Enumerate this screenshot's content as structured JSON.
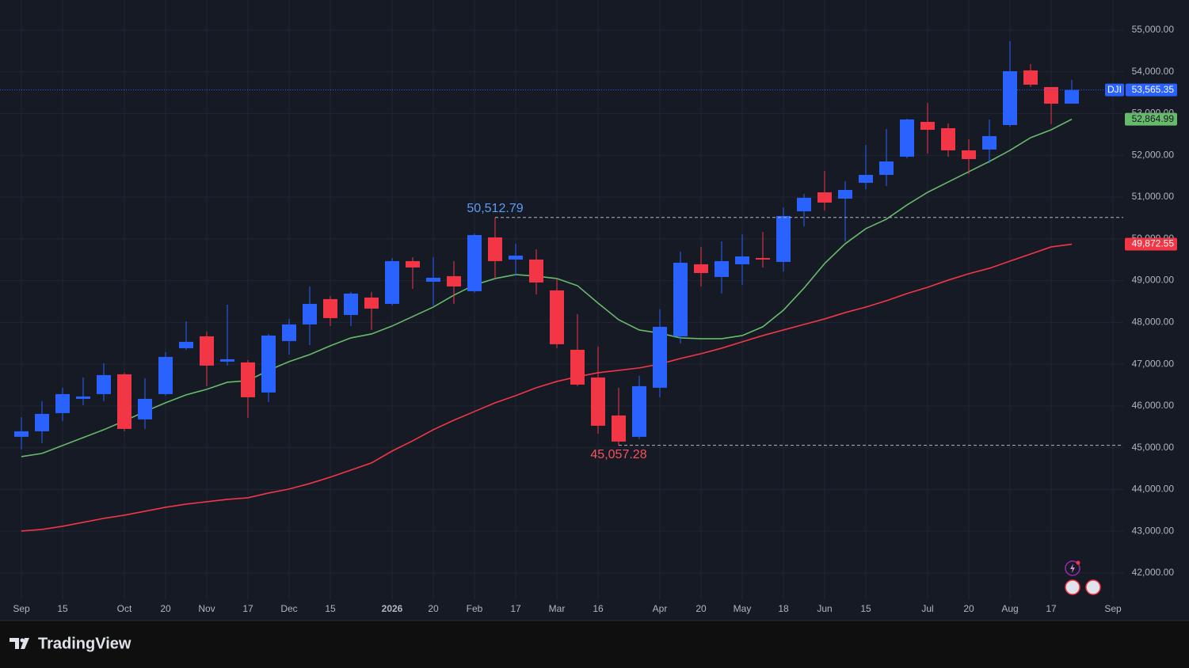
{
  "chart_data": {
    "type": "candlestick",
    "symbol": "DJI",
    "last_price_label": "53,565.35",
    "brand": "TradingView",
    "up_color": "#2962ff",
    "down_color": "#f23645",
    "categories": [
      "Sep",
      null,
      "15",
      null,
      null,
      "Oct",
      null,
      "20",
      null,
      "Nov",
      null,
      "17",
      null,
      "Dec",
      null,
      "15",
      null,
      null,
      "2026",
      null,
      "20",
      null,
      "Feb",
      null,
      "17",
      null,
      "Mar",
      null,
      "16",
      null,
      null,
      "Apr",
      null,
      "20",
      null,
      "May",
      null,
      "18",
      null,
      "Jun",
      null,
      "15",
      null,
      null,
      "Jul",
      null,
      "20",
      null,
      "Aug",
      null,
      "17",
      null,
      null,
      "Sep"
    ],
    "open": [
      45260,
      45392,
      45828,
      46169,
      46283,
      46757,
      45677,
      46283,
      47382,
      47666,
      47060,
      47041,
      46321,
      47553,
      47951,
      48557,
      48178,
      48595,
      48443,
      49467,
      48974,
      49107,
      48747,
      50035,
      49505,
      49505,
      48766,
      47344,
      46681,
      45771,
      45260,
      46435,
      47666,
      49391,
      49088,
      49391,
      49542,
      49448,
      50660,
      51115,
      50964,
      51343,
      51532,
      51968,
      52802,
      52650,
      52120,
      52139,
      52726,
      54034,
      53636,
      53238,
      null,
      null
    ],
    "high": [
      45733,
      46113,
      46435,
      46681,
      47022,
      46795,
      46662,
      47288,
      48026,
      47780,
      48424,
      47098,
      47723,
      48083,
      48860,
      48633,
      48728,
      48728,
      49542,
      49561,
      49561,
      49467,
      50130,
      50512.79,
      49884,
      49751,
      49050,
      48197,
      47420,
      46435,
      46719,
      48311,
      49694,
      49808,
      49940,
      50111,
      50168,
      50755,
      51077,
      51627,
      51381,
      52252,
      52631,
      52878,
      53257,
      52764,
      52385,
      52859,
      54735,
      54185,
      53636,
      53806,
      null,
      null
    ],
    "low": [
      44957,
      45108,
      45639,
      46018,
      46113,
      45392,
      45449,
      46245,
      47344,
      46473,
      46965,
      45715,
      46094,
      47230,
      47458,
      47913,
      47913,
      47818,
      48405,
      48803,
      48405,
      48443,
      48709,
      49050,
      49126,
      48671,
      47382,
      46473,
      45335,
      45057.28,
      45203,
      46207,
      47496,
      48860,
      48690,
      48898,
      49315,
      49220,
      50300,
      50679,
      49940,
      51191,
      51267,
      51930,
      52044,
      51968,
      51551,
      51816,
      52688,
      53636,
      52745,
      53238,
      null,
      null
    ],
    "close": [
      45392,
      45809,
      46283,
      46226,
      46738,
      45449,
      46169,
      47174,
      47534,
      46965,
      47117,
      46207,
      47685,
      47951,
      48443,
      48102,
      48690,
      48330,
      49467,
      49315,
      49069,
      48860,
      50092,
      49467,
      49599,
      48955,
      47477,
      46510,
      45525,
      45146,
      46473,
      47894,
      49429,
      49182,
      49467,
      49580,
      49505,
      50547,
      50983,
      50869,
      51172,
      51532,
      51854,
      52859,
      52612,
      52120,
      51911,
      52461,
      54015,
      53693,
      53238,
      53565.35,
      null,
      null
    ],
    "series": [
      {
        "color": "#66bb6a",
        "last_label": "52,864.99",
        "values": [
          44786,
          44862,
          45051,
          45241,
          45430,
          45639,
          45866,
          46075,
          46265,
          46397,
          46567,
          46605,
          46852,
          47060,
          47230,
          47439,
          47629,
          47723,
          47913,
          48140,
          48367,
          48652,
          48898,
          49050,
          49145,
          49107,
          49050,
          48879,
          48462,
          48064,
          47818,
          47742,
          47629,
          47610,
          47610,
          47685,
          47894,
          48292,
          48822,
          49410,
          49884,
          50244,
          50471,
          50812,
          51115,
          51362,
          51608,
          51854,
          52120,
          52423,
          52612,
          52864.99,
          null,
          null
        ]
      },
      {
        "color": "#f23645",
        "last_label": "49,872.55",
        "values": [
          43004,
          43042,
          43118,
          43213,
          43307,
          43383,
          43478,
          43573,
          43649,
          43705,
          43762,
          43800,
          43914,
          44009,
          44141,
          44293,
          44464,
          44634,
          44919,
          45165,
          45430,
          45658,
          45866,
          46075,
          46245,
          46435,
          46586,
          46700,
          46795,
          46852,
          46909,
          47003,
          47136,
          47250,
          47382,
          47534,
          47685,
          47818,
          47951,
          48083,
          48235,
          48367,
          48519,
          48690,
          48841,
          49012,
          49164,
          49296,
          49467,
          49637,
          49808,
          49872.55,
          null,
          null
        ]
      }
    ],
    "annotations": [
      {
        "label": "50,512.79",
        "value": 50512.79,
        "color": "#5b9cf6"
      },
      {
        "label": "45,057.28",
        "value": 45057.28,
        "color": "#f7525f"
      }
    ],
    "ylim": [
      40880,
      55720
    ],
    "yticks": [
      {
        "value": 42000,
        "label": "42,000.00"
      },
      {
        "value": 43000,
        "label": "43,000.00"
      },
      {
        "value": 44000,
        "label": "44,000.00"
      },
      {
        "value": 45000,
        "label": "45,000.00"
      },
      {
        "value": 46000,
        "label": "46,000.00"
      },
      {
        "value": 47000,
        "label": "47,000.00"
      },
      {
        "value": 48000,
        "label": "48,000.00"
      },
      {
        "value": 49000,
        "label": "49,000.00"
      },
      {
        "value": 50000,
        "label": "50,000.00"
      },
      {
        "value": 51000,
        "label": "51,000.00"
      },
      {
        "value": 52000,
        "label": "52,000.00"
      },
      {
        "value": 53000,
        "label": "53,000.00"
      },
      {
        "value": 54000,
        "label": "54,000.00"
      },
      {
        "value": 55000,
        "label": "55,000.00"
      }
    ],
    "grid": true
  }
}
